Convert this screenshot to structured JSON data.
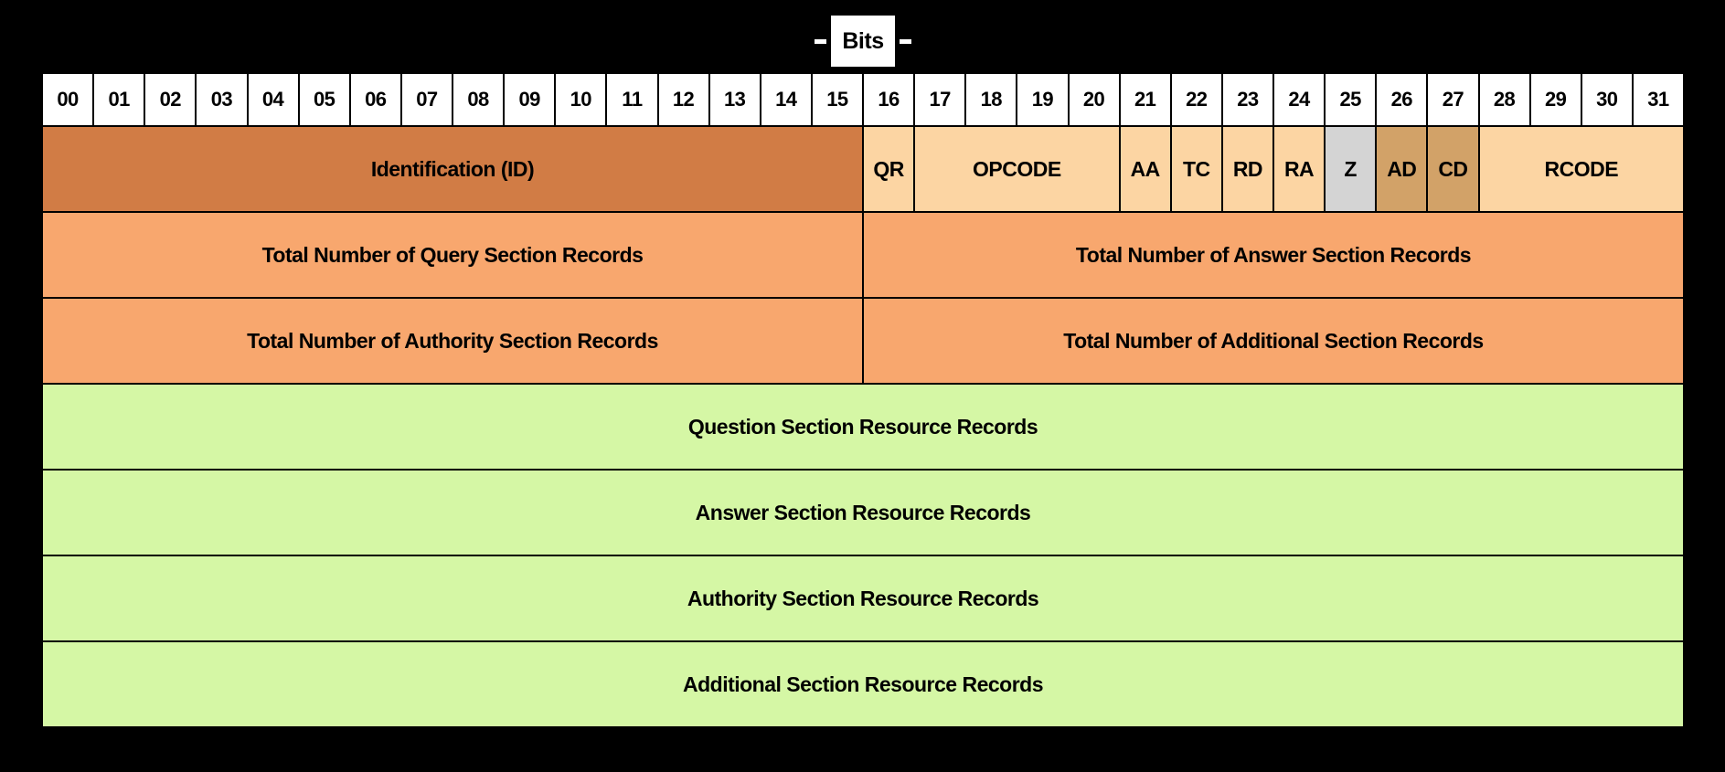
{
  "title": {
    "bits_label": "Bits"
  },
  "colors": {
    "background": "#000000",
    "bit_cell": "#FFFFFF",
    "identification": "#D17C45",
    "flags": "#FCD5A3",
    "z_flag": "#D4D4D4",
    "auth_flags": "#D2A268",
    "counts": "#F8A76E",
    "records": "#D5F7A5",
    "border": "#000000",
    "text": "#000000"
  },
  "bit_numbers": [
    "00",
    "01",
    "02",
    "03",
    "04",
    "05",
    "06",
    "07",
    "08",
    "09",
    "10",
    "11",
    "12",
    "13",
    "14",
    "15",
    "16",
    "17",
    "18",
    "19",
    "20",
    "21",
    "22",
    "23",
    "24",
    "25",
    "26",
    "27",
    "28",
    "29",
    "30",
    "31"
  ],
  "rows": [
    {
      "name": "row-identification-flags",
      "cells": [
        {
          "label": "Identification (ID)",
          "span": 16,
          "color": "identification"
        },
        {
          "label": "QR",
          "span": 1,
          "color": "flags"
        },
        {
          "label": "OPCODE",
          "span": 4,
          "color": "flags"
        },
        {
          "label": "AA",
          "span": 1,
          "color": "flags"
        },
        {
          "label": "TC",
          "span": 1,
          "color": "flags"
        },
        {
          "label": "RD",
          "span": 1,
          "color": "flags"
        },
        {
          "label": "RA",
          "span": 1,
          "color": "flags"
        },
        {
          "label": "Z",
          "span": 1,
          "color": "z_flag"
        },
        {
          "label": "AD",
          "span": 1,
          "color": "auth_flags"
        },
        {
          "label": "CD",
          "span": 1,
          "color": "auth_flags"
        },
        {
          "label": "RCODE",
          "span": 4,
          "color": "flags"
        }
      ]
    },
    {
      "name": "row-query-answer-counts",
      "cells": [
        {
          "label": "Total Number of Query Section Records",
          "span": 16,
          "color": "counts"
        },
        {
          "label": "Total Number of Answer Section Records",
          "span": 16,
          "color": "counts"
        }
      ]
    },
    {
      "name": "row-authority-additional-counts",
      "cells": [
        {
          "label": "Total Number of Authority Section Records",
          "span": 16,
          "color": "counts"
        },
        {
          "label": "Total Number of Additional Section Records",
          "span": 16,
          "color": "counts"
        }
      ]
    },
    {
      "name": "row-question-section",
      "cells": [
        {
          "label": "Question Section Resource Records",
          "span": 32,
          "color": "records"
        }
      ]
    },
    {
      "name": "row-answer-section",
      "cells": [
        {
          "label": "Answer Section Resource Records",
          "span": 32,
          "color": "records"
        }
      ]
    },
    {
      "name": "row-authority-section",
      "cells": [
        {
          "label": "Authority Section Resource Records",
          "span": 32,
          "color": "records"
        }
      ]
    },
    {
      "name": "row-additional-section",
      "cells": [
        {
          "label": "Additional Section Resource Records",
          "span": 32,
          "color": "records"
        }
      ]
    }
  ]
}
